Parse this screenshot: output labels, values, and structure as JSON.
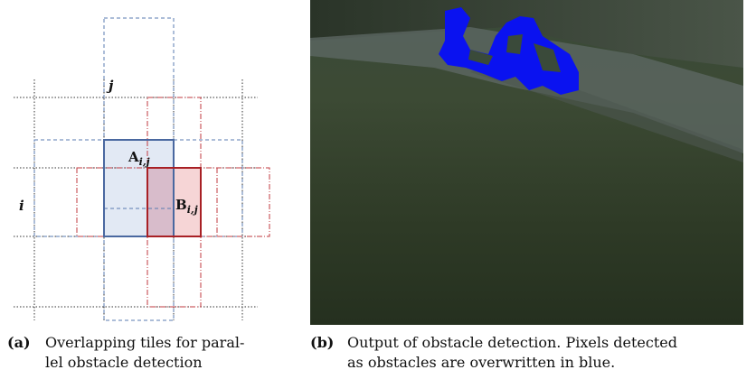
{
  "figure": {
    "panel_a": {
      "labels": {
        "col": "j",
        "row": "i",
        "tile_a": {
          "main": "A",
          "sub": "i,j"
        },
        "tile_b": {
          "main": "B",
          "sub": "i,j"
        }
      },
      "caption": {
        "tag": "(a)",
        "lines": [
          "Overlapping tiles for paral-",
          "lel obstacle detection"
        ]
      }
    },
    "panel_b": {
      "caption": {
        "tag": "(b)",
        "lines": [
          "Output of obstacle detection. Pixels detected",
          "as obstacles are overwritten in blue."
        ]
      }
    }
  }
}
